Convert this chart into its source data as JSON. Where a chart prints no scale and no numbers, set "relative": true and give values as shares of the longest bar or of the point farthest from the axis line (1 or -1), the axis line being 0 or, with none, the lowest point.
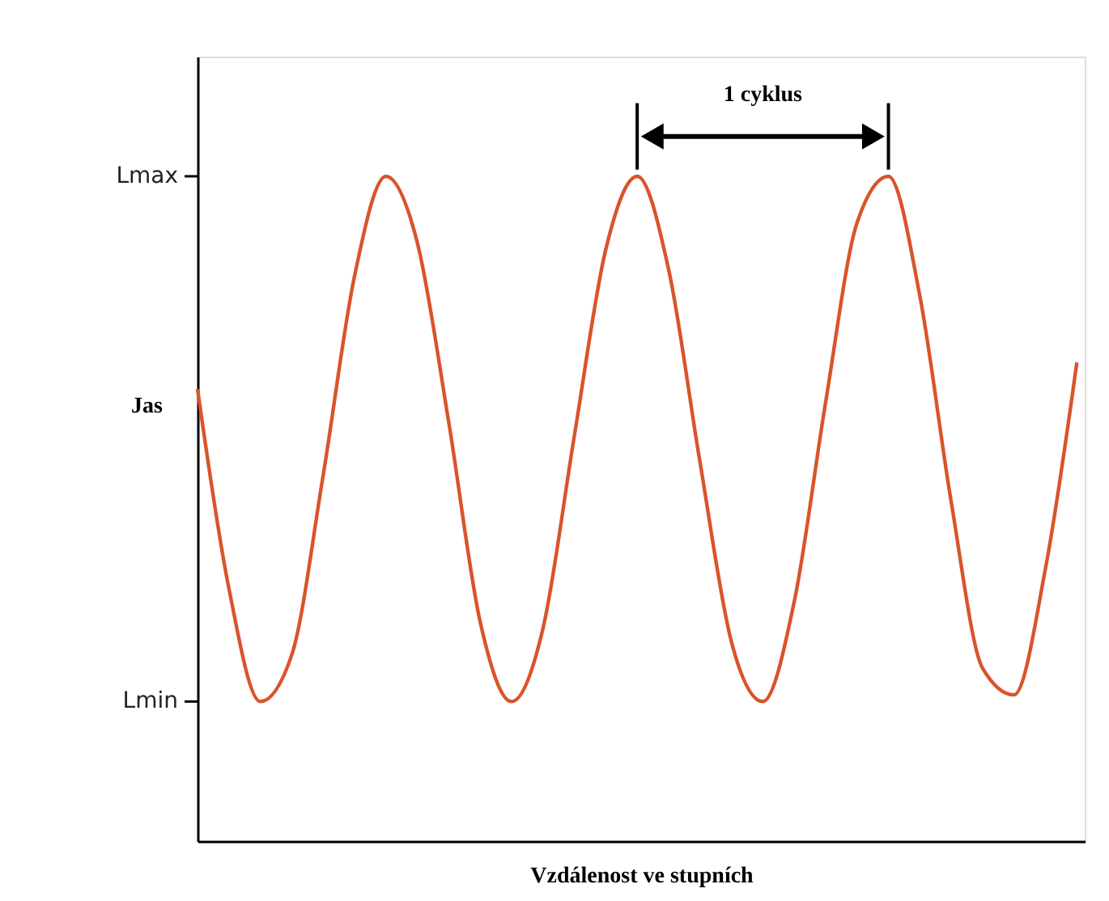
{
  "chart_data": {
    "type": "line",
    "relative": true,
    "xlabel": "Vzdálenost ve stupních",
    "ylabel": "Jas",
    "categories": [
      null,
      null,
      null,
      null,
      null,
      null,
      null,
      null,
      null,
      null,
      null,
      null,
      null,
      null,
      null,
      null,
      null,
      null,
      null,
      null,
      null,
      null,
      null,
      null,
      null,
      null,
      null,
      null,
      null
    ],
    "series": [
      {
        "color": "#d9542a",
        "values": [
          0.68,
          0.38,
          0.21,
          0.28,
          0.55,
          0.85,
          1,
          0.9,
          0.63,
          0.33,
          0.21,
          0.32,
          0.61,
          0.89,
          1,
          0.86,
          0.57,
          0.3,
          0.21,
          0.36,
          0.66,
          0.93,
          1,
          0.82,
          0.51,
          0.26,
          0.22,
          0.41,
          0.72
        ]
      }
    ],
    "tick_labels": "y",
    "grid": false,
    "marker": "none",
    "line_style": "solid",
    "annotations": [
      "1 cyklus",
      "Lmax",
      "Lmin"
    ]
  }
}
